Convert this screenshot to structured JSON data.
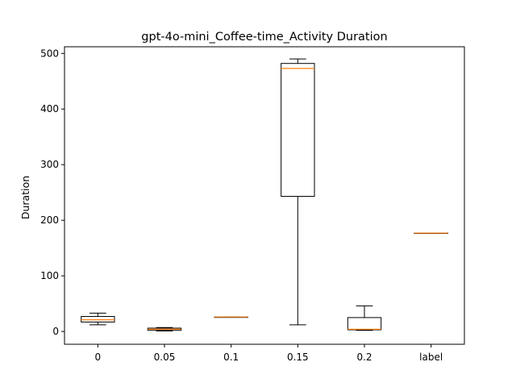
{
  "chart_data": {
    "type": "boxplot",
    "title": "gpt-4o-mini_Coffee-time_Activity Duration",
    "xlabel": "",
    "ylabel": "Duration",
    "ylim": [
      -23,
      512
    ],
    "yticks": [
      0,
      100,
      200,
      300,
      400,
      500
    ],
    "categories": [
      "0",
      "0.05",
      "0.1",
      "0.15",
      "0.2",
      "label"
    ],
    "boxes": [
      {
        "whisker_low": 12,
        "q1": 17,
        "median": 21,
        "q3": 27,
        "whisker_high": 33
      },
      {
        "whisker_low": 1,
        "q1": 2,
        "median": 4,
        "q3": 6,
        "whisker_high": 7
      },
      {
        "whisker_low": 26,
        "q1": 26,
        "median": 26,
        "q3": 26,
        "whisker_high": 26
      },
      {
        "whisker_low": 12,
        "q1": 243,
        "median": 473,
        "q3": 482,
        "whisker_high": 490
      },
      {
        "whisker_low": 2,
        "q1": 3,
        "median": 4,
        "q3": 25,
        "whisker_high": 46
      },
      {
        "whisker_low": 177,
        "q1": 177,
        "median": 177,
        "q3": 177,
        "whisker_high": 177
      }
    ],
    "grid": false,
    "colors": {
      "box": "#000000",
      "median": "#ff7f0e",
      "axes": "#000000",
      "background": "#ffffff"
    }
  }
}
